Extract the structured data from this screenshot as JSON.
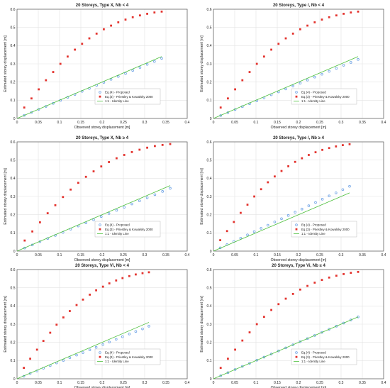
{
  "styles": {
    "proposed_color": "#6fa3e6",
    "priestley_color": "#e3342f",
    "identity_color": "#4bbf3a",
    "grid_color": "#e3e3e3",
    "axis_color": "#555555"
  },
  "common": {
    "xlabel": "Observed storey displacement [m]",
    "ylabel": "Estimated storey displacement [m]",
    "xticks": [
      "0",
      "0.05",
      "0.1",
      "0.15",
      "0.2",
      "0.25",
      "0.3",
      "0.35",
      "0.4"
    ],
    "yticks": [
      "0",
      "0.1",
      "0.2",
      "0.3",
      "0.4",
      "0.5",
      "0.6"
    ],
    "legend": [
      "Eq.(4) - Proposed",
      "Eq.(3) - Priestley & Kowalsky 2000",
      "1:1 - Identity Line"
    ]
  },
  "chart_data": [
    {
      "type": "scatter",
      "title": "20 Storeys, Type X, Nb < 4",
      "xlabel": "Observed storey displacement [m]",
      "ylabel": "Estimated storey displacement [m]",
      "xlim": [
        0,
        0.4
      ],
      "ylim": [
        0,
        0.6
      ],
      "grid": true,
      "legend_position": "bottom-right",
      "series": [
        {
          "name": "Eq.(4) - Proposed",
          "marker": "circle",
          "x": [
            0.017,
            0.034,
            0.051,
            0.068,
            0.085,
            0.102,
            0.119,
            0.136,
            0.153,
            0.17,
            0.187,
            0.204,
            0.221,
            0.238,
            0.255,
            0.272,
            0.289,
            0.306,
            0.323,
            0.34
          ],
          "y": [
            0.017,
            0.033,
            0.05,
            0.066,
            0.083,
            0.099,
            0.116,
            0.132,
            0.149,
            0.165,
            0.182,
            0.198,
            0.215,
            0.231,
            0.247,
            0.264,
            0.28,
            0.297,
            0.313,
            0.33
          ]
        },
        {
          "name": "Eq.(3) - Priestley & Kowalsky 2000",
          "marker": "square",
          "x": [
            0.017,
            0.034,
            0.051,
            0.068,
            0.085,
            0.102,
            0.119,
            0.136,
            0.153,
            0.17,
            0.187,
            0.204,
            0.221,
            0.238,
            0.255,
            0.272,
            0.289,
            0.306,
            0.323,
            0.34
          ],
          "y": [
            0.06,
            0.11,
            0.16,
            0.21,
            0.255,
            0.3,
            0.34,
            0.378,
            0.41,
            0.44,
            0.466,
            0.49,
            0.51,
            0.528,
            0.543,
            0.556,
            0.566,
            0.575,
            0.582,
            0.587
          ]
        },
        {
          "name": "1:1 - Identity Line",
          "marker": "line",
          "x": [
            0,
            0.34
          ],
          "y": [
            0,
            0.34
          ]
        }
      ]
    },
    {
      "type": "scatter",
      "title": "20 Storeys, Type /, Nb < 4",
      "xlabel": "Observed storey displacement [m]",
      "ylabel": "Estimated storey displacement [m]",
      "xlim": [
        0,
        0.4
      ],
      "ylim": [
        0,
        0.6
      ],
      "grid": true,
      "legend_position": "bottom-right",
      "series": [
        {
          "name": "Eq.(4) - Proposed",
          "marker": "circle",
          "x": [
            0.017,
            0.034,
            0.051,
            0.068,
            0.085,
            0.102,
            0.119,
            0.136,
            0.153,
            0.17,
            0.187,
            0.204,
            0.221,
            0.238,
            0.255,
            0.272,
            0.289,
            0.306,
            0.323,
            0.34
          ],
          "y": [
            0.016,
            0.032,
            0.049,
            0.065,
            0.081,
            0.097,
            0.113,
            0.13,
            0.146,
            0.162,
            0.178,
            0.194,
            0.211,
            0.227,
            0.243,
            0.259,
            0.275,
            0.292,
            0.308,
            0.324
          ]
        },
        {
          "name": "Eq.(3) - Priestley & Kowalsky 2000",
          "marker": "square",
          "x": [
            0.017,
            0.034,
            0.051,
            0.068,
            0.085,
            0.102,
            0.119,
            0.136,
            0.153,
            0.17,
            0.187,
            0.204,
            0.221,
            0.238,
            0.255,
            0.272,
            0.289,
            0.306,
            0.323,
            0.34
          ],
          "y": [
            0.06,
            0.11,
            0.16,
            0.21,
            0.255,
            0.3,
            0.34,
            0.378,
            0.41,
            0.44,
            0.466,
            0.49,
            0.51,
            0.528,
            0.543,
            0.556,
            0.566,
            0.575,
            0.582,
            0.587
          ]
        },
        {
          "name": "1:1 - Identity Line",
          "marker": "line",
          "x": [
            0,
            0.34
          ],
          "y": [
            0,
            0.34
          ]
        }
      ]
    },
    {
      "type": "scatter",
      "title": "20 Storeys, Type X, Nb ≥ 4",
      "xlabel": "Observed storey displacement [m]",
      "ylabel": "Estimated storey displacement [m]",
      "xlim": [
        0,
        0.4
      ],
      "ylim": [
        0,
        0.6
      ],
      "grid": true,
      "legend_position": "bottom-right",
      "series": [
        {
          "name": "Eq.(4) - Proposed",
          "marker": "circle",
          "x": [
            0.018,
            0.036,
            0.054,
            0.072,
            0.09,
            0.108,
            0.126,
            0.144,
            0.162,
            0.18,
            0.198,
            0.216,
            0.234,
            0.252,
            0.27,
            0.288,
            0.306,
            0.324,
            0.342,
            0.36
          ],
          "y": [
            0.017,
            0.034,
            0.052,
            0.069,
            0.086,
            0.103,
            0.121,
            0.138,
            0.155,
            0.172,
            0.19,
            0.207,
            0.224,
            0.241,
            0.259,
            0.276,
            0.293,
            0.31,
            0.328,
            0.345
          ]
        },
        {
          "name": "Eq.(3) - Priestley & Kowalsky 2000",
          "marker": "square",
          "x": [
            0.018,
            0.036,
            0.054,
            0.072,
            0.09,
            0.108,
            0.126,
            0.144,
            0.162,
            0.18,
            0.198,
            0.216,
            0.234,
            0.252,
            0.27,
            0.288,
            0.306,
            0.324,
            0.342,
            0.36
          ],
          "y": [
            0.058,
            0.108,
            0.158,
            0.208,
            0.252,
            0.297,
            0.338,
            0.375,
            0.408,
            0.438,
            0.465,
            0.489,
            0.51,
            0.528,
            0.544,
            0.557,
            0.568,
            0.577,
            0.583,
            0.588
          ]
        },
        {
          "name": "1:1 - Identity Line",
          "marker": "line",
          "x": [
            0,
            0.36
          ],
          "y": [
            0,
            0.36
          ]
        }
      ]
    },
    {
      "type": "scatter",
      "title": "20 Storeys, Type /, Nb ≥ 4",
      "xlabel": "Observed storey displacement [m]",
      "ylabel": "Estimated storey displacement [m]",
      "xlim": [
        0,
        0.4
      ],
      "ylim": [
        0,
        0.6
      ],
      "grid": true,
      "legend_position": "bottom-right",
      "series": [
        {
          "name": "Eq.(4) - Proposed",
          "marker": "circle",
          "x": [
            0.016,
            0.032,
            0.048,
            0.064,
            0.08,
            0.096,
            0.112,
            0.128,
            0.144,
            0.16,
            0.176,
            0.192,
            0.208,
            0.224,
            0.24,
            0.256,
            0.272,
            0.288,
            0.304,
            0.32
          ],
          "y": [
            0.018,
            0.036,
            0.053,
            0.071,
            0.089,
            0.107,
            0.125,
            0.142,
            0.16,
            0.178,
            0.196,
            0.214,
            0.231,
            0.249,
            0.267,
            0.285,
            0.303,
            0.32,
            0.338,
            0.356
          ]
        },
        {
          "name": "Eq.(3) - Priestley & Kowalsky 2000",
          "marker": "square",
          "x": [
            0.016,
            0.032,
            0.048,
            0.064,
            0.08,
            0.096,
            0.112,
            0.128,
            0.144,
            0.16,
            0.176,
            0.192,
            0.208,
            0.224,
            0.24,
            0.256,
            0.272,
            0.288,
            0.304,
            0.32
          ],
          "y": [
            0.06,
            0.11,
            0.16,
            0.21,
            0.255,
            0.3,
            0.34,
            0.378,
            0.41,
            0.44,
            0.466,
            0.49,
            0.51,
            0.528,
            0.543,
            0.556,
            0.566,
            0.575,
            0.582,
            0.587
          ]
        },
        {
          "name": "1:1 - Identity Line",
          "marker": "line",
          "x": [
            0,
            0.32
          ],
          "y": [
            0,
            0.32
          ]
        }
      ]
    },
    {
      "type": "scatter",
      "title": "20 Storeys, Type Vi, Nb < 4",
      "xlabel": "Observed storey displacement [m]",
      "ylabel": "Estimated storey displacement [m]",
      "xlim": [
        0,
        0.4
      ],
      "ylim": [
        0,
        0.6
      ],
      "grid": true,
      "legend_position": "bottom-right",
      "series": [
        {
          "name": "Eq.(4) - Proposed",
          "marker": "circle",
          "x": [
            0.016,
            0.031,
            0.047,
            0.062,
            0.078,
            0.093,
            0.109,
            0.124,
            0.14,
            0.155,
            0.171,
            0.186,
            0.202,
            0.217,
            0.233,
            0.248,
            0.264,
            0.279,
            0.295,
            0.31
          ],
          "y": [
            0.014,
            0.029,
            0.043,
            0.058,
            0.072,
            0.087,
            0.101,
            0.116,
            0.13,
            0.144,
            0.159,
            0.173,
            0.188,
            0.202,
            0.217,
            0.231,
            0.246,
            0.26,
            0.274,
            0.289
          ]
        },
        {
          "name": "Eq.(3) - Priestley & Kowalsky 2000",
          "marker": "square",
          "x": [
            0.016,
            0.031,
            0.047,
            0.062,
            0.078,
            0.093,
            0.109,
            0.124,
            0.14,
            0.155,
            0.171,
            0.186,
            0.202,
            0.217,
            0.233,
            0.248,
            0.264,
            0.279,
            0.295,
            0.31
          ],
          "y": [
            0.06,
            0.11,
            0.16,
            0.208,
            0.253,
            0.297,
            0.337,
            0.372,
            0.405,
            0.435,
            0.462,
            0.486,
            0.506,
            0.524,
            0.54,
            0.553,
            0.564,
            0.573,
            0.58,
            0.585
          ]
        },
        {
          "name": "1:1 - Identity Line",
          "marker": "line",
          "x": [
            0,
            0.31
          ],
          "y": [
            0,
            0.31
          ]
        }
      ]
    },
    {
      "type": "scatter",
      "title": "20 Storeys, Type Vi, Nb ≥ 4",
      "xlabel": "Observed storey displacement [m]",
      "ylabel": "Estimated storey displacement [m]",
      "xlim": [
        0,
        0.4
      ],
      "ylim": [
        0,
        0.6
      ],
      "grid": true,
      "legend_position": "bottom-right",
      "series": [
        {
          "name": "Eq.(4) - Proposed",
          "marker": "circle",
          "x": [
            0.017,
            0.034,
            0.051,
            0.068,
            0.085,
            0.102,
            0.119,
            0.136,
            0.153,
            0.17,
            0.187,
            0.204,
            0.221,
            0.238,
            0.255,
            0.272,
            0.289,
            0.306,
            0.323,
            0.34
          ],
          "y": [
            0.017,
            0.034,
            0.051,
            0.068,
            0.085,
            0.102,
            0.119,
            0.136,
            0.153,
            0.17,
            0.187,
            0.204,
            0.221,
            0.238,
            0.255,
            0.272,
            0.289,
            0.306,
            0.323,
            0.34
          ]
        },
        {
          "name": "Eq.(3) - Priestley & Kowalsky 2000",
          "marker": "square",
          "x": [
            0.017,
            0.034,
            0.051,
            0.068,
            0.085,
            0.102,
            0.119,
            0.136,
            0.153,
            0.17,
            0.187,
            0.204,
            0.221,
            0.238,
            0.255,
            0.272,
            0.289,
            0.306,
            0.323,
            0.34
          ],
          "y": [
            0.06,
            0.11,
            0.16,
            0.21,
            0.255,
            0.3,
            0.34,
            0.378,
            0.41,
            0.44,
            0.466,
            0.49,
            0.51,
            0.528,
            0.543,
            0.556,
            0.566,
            0.575,
            0.582,
            0.587
          ]
        },
        {
          "name": "1:1 - Identity Line",
          "marker": "line",
          "x": [
            0,
            0.34
          ],
          "y": [
            0,
            0.34
          ]
        }
      ]
    }
  ]
}
